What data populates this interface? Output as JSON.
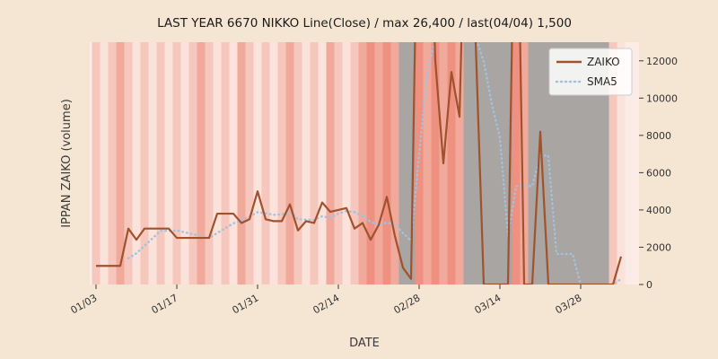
{
  "figure": {
    "background": "#f5e6d3",
    "plot_background": "#fcece7"
  },
  "chart_data": {
    "type": "line",
    "title": "LAST YEAR 6670 NIKKO Line(Close) / max 26,400 / last(04/04) 1,500",
    "xlabel": "DATE",
    "ylabel": "IPPAN ZAIKO (volume)",
    "x_tick_labels": [
      "01/03",
      "01/17",
      "01/31",
      "02/14",
      "02/28",
      "03/14",
      "03/28"
    ],
    "x_tick_indices": [
      0,
      10,
      20,
      30,
      40,
      50,
      60
    ],
    "y_ticks": [
      0,
      2000,
      4000,
      6000,
      8000,
      10000,
      12000
    ],
    "y_tick_side": "right",
    "ylim": [
      0,
      13000
    ],
    "max_value": 26400,
    "last_value": 1500,
    "last_date": "04/04",
    "grid": false,
    "legend": {
      "position": "upper right",
      "entries": [
        "ZAIKO",
        "SMA5"
      ]
    },
    "dates": [
      "01/03",
      "01/04",
      "01/05",
      "01/06",
      "01/09",
      "01/10",
      "01/11",
      "01/12",
      "01/13",
      "01/16",
      "01/17",
      "01/18",
      "01/19",
      "01/20",
      "01/23",
      "01/24",
      "01/25",
      "01/26",
      "01/27",
      "01/30",
      "01/31",
      "02/01",
      "02/02",
      "02/03",
      "02/06",
      "02/07",
      "02/08",
      "02/09",
      "02/10",
      "02/13",
      "02/14",
      "02/15",
      "02/16",
      "02/17",
      "02/20",
      "02/21",
      "02/22",
      "02/23",
      "02/24",
      "02/27",
      "02/28",
      "03/01",
      "03/02",
      "03/03",
      "03/06",
      "03/07",
      "03/08",
      "03/09",
      "03/10",
      "03/13",
      "03/14",
      "03/15",
      "03/16",
      "03/17",
      "03/20",
      "03/21",
      "03/22",
      "03/23",
      "03/24",
      "03/27",
      "03/28",
      "03/29",
      "03/30",
      "03/31",
      "04/03",
      "04/04"
    ],
    "series": [
      {
        "name": "ZAIKO",
        "color": "#a0522d",
        "line_style": "solid",
        "values": [
          1000,
          1000,
          1000,
          1000,
          3000,
          2400,
          3000,
          3000,
          3000,
          3000,
          2500,
          2500,
          2500,
          2500,
          2500,
          3800,
          3800,
          3800,
          3300,
          3500,
          5000,
          3500,
          3400,
          3400,
          4300,
          2900,
          3400,
          3300,
          4400,
          3900,
          4000,
          4100,
          3000,
          3300,
          2400,
          3200,
          4700,
          2600,
          900,
          300,
          26400,
          26400,
          12000,
          6500,
          11400,
          9000,
          26400,
          13000,
          0,
          0,
          0,
          0,
          26400,
          0,
          0,
          8200,
          0,
          0,
          0,
          0,
          0,
          0,
          0,
          0,
          0,
          1500
        ]
      },
      {
        "name": "SMA5",
        "color": "#a3c2e0",
        "line_style": "dotted",
        "window": 5
      }
    ],
    "background_bands": {
      "palette": {
        "p0": "#fbe2da",
        "p1": "#f6c7bd",
        "p2": "#f1a99c",
        "p3": "#ee9181",
        "g": "#a8a5a3"
      },
      "day_colors": [
        "p1",
        "p0",
        "p1",
        "p2",
        "p1",
        "p0",
        "p1",
        "p0",
        "p1",
        "p0",
        "p1",
        "p0",
        "p1",
        "p2",
        "p1",
        "p0",
        "p1",
        "p0",
        "p2",
        "p1",
        "p0",
        "p1",
        "p0",
        "p1",
        "p2",
        "p1",
        "p0",
        "p1",
        "p0",
        "p2",
        "p1",
        "p0",
        "p1",
        "p2",
        "p3",
        "p2",
        "p3",
        "p2",
        "g",
        "g",
        "p3",
        "p2",
        "p3",
        "p2",
        "p3",
        "p2",
        "g",
        "g",
        "g",
        "g",
        "g",
        "g",
        "p3",
        "p2",
        "g",
        "g",
        "g",
        "g",
        "g",
        "g",
        "g",
        "g",
        "g",
        "g",
        "p1",
        "p0"
      ]
    }
  }
}
